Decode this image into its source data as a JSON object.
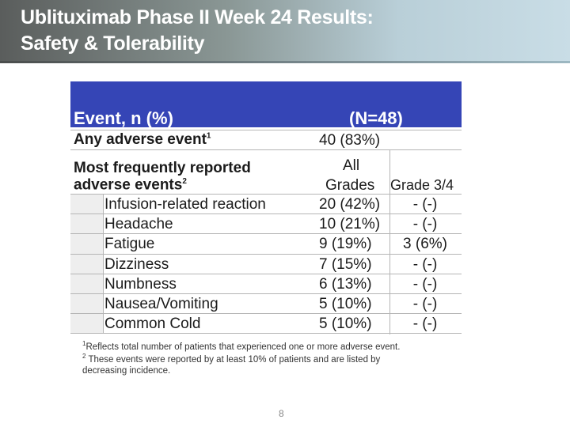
{
  "slide": {
    "title_line1": "Ublituximab Phase II Week 24 Results:",
    "title_line2": "Safety & Tolerability",
    "page_number": "8"
  },
  "table": {
    "header_event": "Event, n (%)",
    "header_n": "(N=48)",
    "any_ae_label": "Any adverse event",
    "any_ae_sup": "1",
    "any_ae_value": "40 (83%)",
    "freq_label_line1": "Most frequently reported",
    "freq_label_line2": "adverse events",
    "freq_sup": "2",
    "col_all_line1": "All",
    "col_all_line2": "Grades",
    "col_grade34": "Grade 3/4",
    "rows": [
      {
        "event": "Infusion-related reaction",
        "all": "20 (42%)",
        "g34": "- (-)"
      },
      {
        "event": "Headache",
        "all": "10 (21%)",
        "g34": "- (-)"
      },
      {
        "event": "Fatigue",
        "all": "9 (19%)",
        "g34": "3 (6%)"
      },
      {
        "event": "Dizziness",
        "all": "7 (15%)",
        "g34": "- (-)"
      },
      {
        "event": "Numbness",
        "all": "6 (13%)",
        "g34": "- (-)"
      },
      {
        "event": "Nausea/Vomiting",
        "all": "5 (10%)",
        "g34": "- (-)"
      },
      {
        "event": "Common Cold",
        "all": "5 (10%)",
        "g34": "- (-)"
      }
    ]
  },
  "footnotes": {
    "fn1_sup": "1",
    "fn1": "Reflects total number of patients that experienced one or more adverse event.",
    "fn2_sup": "2",
    "fn2_line1": "These events were reported by at least 10% of patients and are listed by",
    "fn2_line2": "decreasing incidence."
  },
  "colors": {
    "header_blue": "#3545b6",
    "row_shade": "#eeeeee"
  }
}
